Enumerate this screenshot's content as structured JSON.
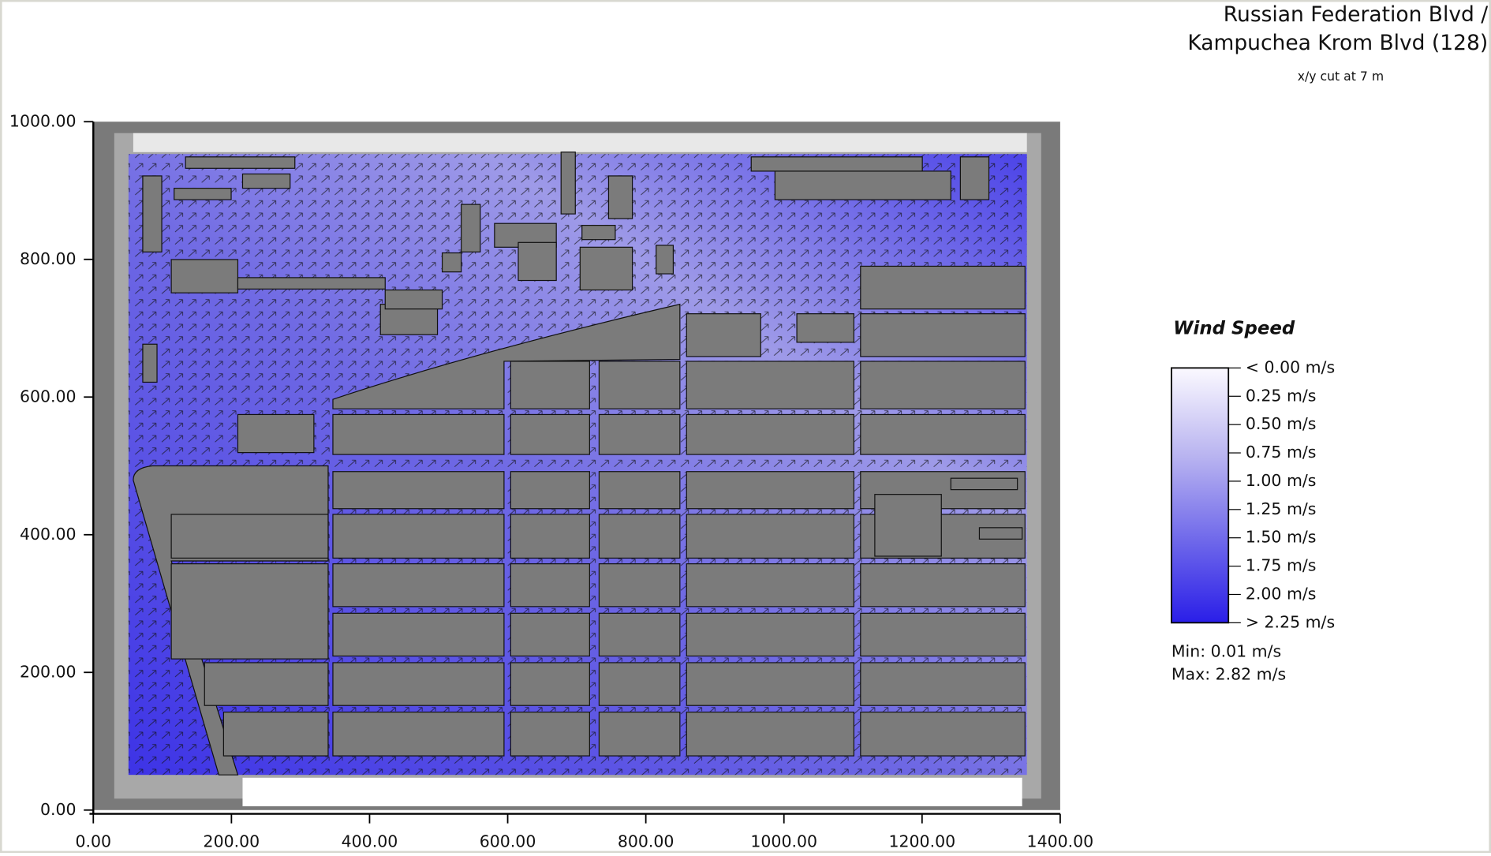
{
  "header": {
    "title_lines": [
      "Russian Federation Blvd /",
      "Kampuchea Krom Blvd (128)"
    ],
    "subtitle": "x/y cut at 7 m"
  },
  "axes": {
    "xlim": [
      0,
      1400
    ],
    "ylim": [
      0,
      1000
    ],
    "xticks": [
      {
        "value": 0,
        "label": "0.00"
      },
      {
        "value": 200,
        "label": "200.00"
      },
      {
        "value": 400,
        "label": "400.00"
      },
      {
        "value": 600,
        "label": "600.00"
      },
      {
        "value": 800,
        "label": "800.00"
      },
      {
        "value": 1000,
        "label": "1000.00"
      },
      {
        "value": 1200,
        "label": "1200.00"
      },
      {
        "value": 1400,
        "label": "1400.00"
      }
    ],
    "yticks": [
      {
        "value": 0,
        "label": "0.00"
      },
      {
        "value": 200,
        "label": "200.00"
      },
      {
        "value": 400,
        "label": "400.00"
      },
      {
        "value": 600,
        "label": "600.00"
      },
      {
        "value": 800,
        "label": "800.00"
      },
      {
        "value": 1000,
        "label": "1000.00"
      }
    ]
  },
  "legend": {
    "title": "Wind Speed",
    "labels": [
      "< 0.00 m/s",
      "0.25  m/s",
      "0.50  m/s",
      "0.75  m/s",
      "1.00  m/s",
      "1.25  m/s",
      "1.50  m/s",
      "1.75  m/s",
      "2.00  m/s",
      "> 2.25 m/s"
    ],
    "min": "Min: 0.01 m/s",
    "max": "Max: 2.82 m/s"
  }
}
